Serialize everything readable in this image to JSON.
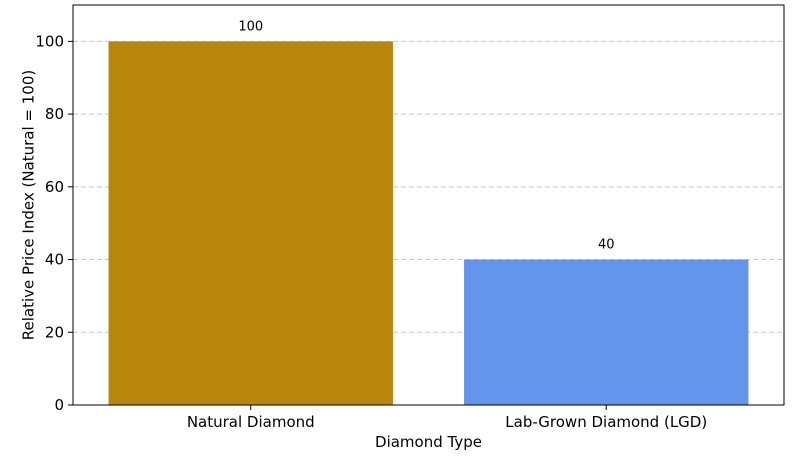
{
  "chart_data": {
    "type": "bar",
    "title": "",
    "xlabel": "Diamond Type",
    "ylabel": "Relative Price Index (Natural = 100)",
    "categories": [
      "Natural Diamond",
      "Lab-Grown Diamond (LGD)"
    ],
    "values": [
      100,
      40
    ],
    "data_labels": [
      "100",
      "40"
    ],
    "colors": [
      "#b8860b",
      "#6495ed"
    ],
    "ylim": [
      0,
      110
    ],
    "yticks": [
      0,
      20,
      40,
      60,
      80,
      100
    ],
    "grid": "y-dashed",
    "legend": "none"
  }
}
